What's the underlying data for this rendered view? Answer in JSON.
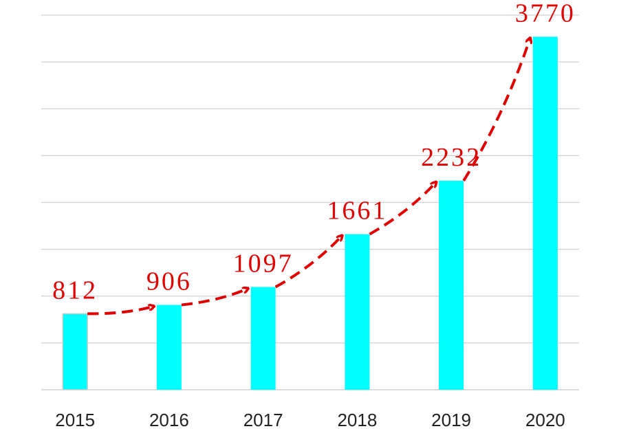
{
  "chart_data": {
    "type": "bar",
    "title": "",
    "xlabel": "",
    "ylabel": "",
    "categories": [
      "2015",
      "2016",
      "2017",
      "2018",
      "2019",
      "2020"
    ],
    "values": [
      812,
      906,
      1097,
      1661,
      2232,
      3770
    ],
    "data_labels": [
      "812",
      "906",
      "1097",
      "1661",
      "2232",
      "3770"
    ],
    "ylim": [
      0,
      4000
    ],
    "ytick_step": 500,
    "grid": true,
    "legend": "none",
    "annotations": "red dashed trend arrows connecting consecutive bar tops",
    "colors": {
      "bar": "#00ffff",
      "trend": "#e00000",
      "label": "#e00000",
      "grid": "#d0d0d0"
    }
  }
}
